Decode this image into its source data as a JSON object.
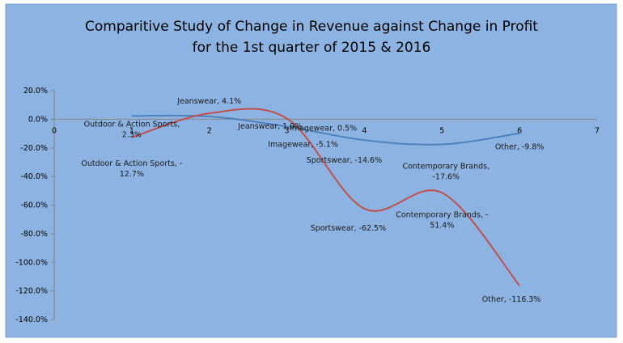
{
  "chart_data": {
    "type": "line",
    "title": [
      "Comparitive Study of Change in Revenue against Change in Profit",
      "for the 1st quarter of 2015 & 2016"
    ],
    "xlabel": "",
    "ylabel": "",
    "xlim": [
      0,
      7
    ],
    "ylim": [
      -140,
      20
    ],
    "x_ticks": [
      "0",
      "1",
      "2",
      "3",
      "4",
      "5",
      "6",
      "7"
    ],
    "y_ticks": [
      "20.0%",
      "0.0%",
      "-20.0%",
      "-40.0%",
      "-60.0%",
      "-80.0%",
      "-100.0%",
      "-120.0%",
      "-140.0%"
    ],
    "smoothed": true,
    "legend": "none",
    "series": [
      {
        "name": "Change in Revenue",
        "color": "#4F81BD",
        "x": [
          1,
          2,
          3,
          4,
          5,
          6
        ],
        "values": [
          2.3,
          1.9,
          -5.1,
          -14.6,
          -17.6,
          -9.8
        ],
        "labels": [
          "Outdoor & Action Sports,|2.3%",
          "Jeanswear, 1.9%",
          "Imagewear, -5.1%",
          "Sportswear, -14.6%",
          "Contemporary Brands,|-17.6%",
          "Other, -9.8%"
        ]
      },
      {
        "name": "Change in Profit",
        "color": "#C0504D",
        "x": [
          1,
          2,
          3,
          4,
          5,
          6
        ],
        "values": [
          -12.7,
          4.1,
          0.5,
          -62.5,
          -51.4,
          -116.3
        ],
        "labels": [
          "Outdoor & Action Sports, -|12.7%",
          "Jeanswear, 4.1%",
          "Imagewear, 0.5%",
          "Sportswear, -62.5%",
          "Contemporary Brands, -|51.4%",
          "Other, -116.3%"
        ]
      }
    ]
  }
}
